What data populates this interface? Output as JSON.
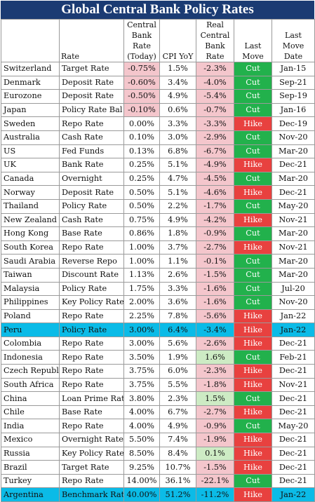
{
  "title": "Global Central Bank Policy Rates",
  "headers": {
    "country": "",
    "rate": "Rate",
    "central_rate": "Central Bank Rate (Today)",
    "cpi": "CPI YoY",
    "real_rate": "Real Central Bank Rate",
    "last_move": "Last Move",
    "last_move_date": "Last Move Date"
  },
  "colors": {
    "title_bg": "#1b3b73",
    "cut": "#22b14c",
    "hike": "#e8413f",
    "negative": "#f4c6cc",
    "positive": "#cdebc4",
    "highlight": "#0bbbe7"
  },
  "chart_data": {
    "type": "table",
    "title": "Global Central Bank Policy Rates",
    "columns": [
      "",
      "Rate",
      "Central Bank Rate (Today)",
      "CPI YoY",
      "Real Central Bank Rate",
      "Last Move",
      "Last Move Date"
    ],
    "rows": [
      {
        "country": "Switzerland",
        "rate": "Target Rate",
        "cb_rate": "-0.75%",
        "cpi": "1.5%",
        "real": "-2.3%",
        "move": "Cut",
        "date": "Jan-15"
      },
      {
        "country": "Denmark",
        "rate": "Deposit Rate",
        "cb_rate": "-0.60%",
        "cpi": "3.4%",
        "real": "-4.0%",
        "move": "Cut",
        "date": "Sep-21"
      },
      {
        "country": "Eurozone",
        "rate": "Deposit Rate",
        "cb_rate": "-0.50%",
        "cpi": "4.9%",
        "real": "-5.4%",
        "move": "Cut",
        "date": "Sep-19"
      },
      {
        "country": "Japan",
        "rate": "Policy Rate Bal",
        "cb_rate": "-0.10%",
        "cpi": "0.6%",
        "real": "-0.7%",
        "move": "Cut",
        "date": "Jan-16"
      },
      {
        "country": "Sweden",
        "rate": "Repo Rate",
        "cb_rate": "0.00%",
        "cpi": "3.3%",
        "real": "-3.3%",
        "move": "Hike",
        "date": "Dec-19"
      },
      {
        "country": "Australia",
        "rate": "Cash Rate",
        "cb_rate": "0.10%",
        "cpi": "3.0%",
        "real": "-2.9%",
        "move": "Cut",
        "date": "Nov-20"
      },
      {
        "country": "US",
        "rate": "Fed Funds",
        "cb_rate": "0.13%",
        "cpi": "6.8%",
        "real": "-6.7%",
        "move": "Cut",
        "date": "Mar-20"
      },
      {
        "country": "UK",
        "rate": "Bank Rate",
        "cb_rate": "0.25%",
        "cpi": "5.1%",
        "real": "-4.9%",
        "move": "Hike",
        "date": "Dec-21"
      },
      {
        "country": "Canada",
        "rate": "Overnight",
        "cb_rate": "0.25%",
        "cpi": "4.7%",
        "real": "-4.5%",
        "move": "Cut",
        "date": "Mar-20"
      },
      {
        "country": "Norway",
        "rate": "Deposit Rate",
        "cb_rate": "0.50%",
        "cpi": "5.1%",
        "real": "-4.6%",
        "move": "Hike",
        "date": "Dec-21"
      },
      {
        "country": "Thailand",
        "rate": "Policy Rate",
        "cb_rate": "0.50%",
        "cpi": "2.2%",
        "real": "-1.7%",
        "move": "Cut",
        "date": "May-20"
      },
      {
        "country": "New Zealand",
        "rate": "Cash Rate",
        "cb_rate": "0.75%",
        "cpi": "4.9%",
        "real": "-4.2%",
        "move": "Hike",
        "date": "Nov-21"
      },
      {
        "country": "Hong Kong",
        "rate": "Base Rate",
        "cb_rate": "0.86%",
        "cpi": "1.8%",
        "real": "-0.9%",
        "move": "Cut",
        "date": "Mar-20"
      },
      {
        "country": "South Korea",
        "rate": "Repo Rate",
        "cb_rate": "1.00%",
        "cpi": "3.7%",
        "real": "-2.7%",
        "move": "Hike",
        "date": "Nov-21"
      },
      {
        "country": "Saudi Arabia",
        "rate": "Reverse Repo",
        "cb_rate": "1.00%",
        "cpi": "1.1%",
        "real": "-0.1%",
        "move": "Cut",
        "date": "Mar-20"
      },
      {
        "country": "Taiwan",
        "rate": "Discount Rate",
        "cb_rate": "1.13%",
        "cpi": "2.6%",
        "real": "-1.5%",
        "move": "Cut",
        "date": "Mar-20"
      },
      {
        "country": "Malaysia",
        "rate": "Policy Rate",
        "cb_rate": "1.75%",
        "cpi": "3.3%",
        "real": "-1.6%",
        "move": "Cut",
        "date": "Jul-20"
      },
      {
        "country": "Philippines",
        "rate": "Key Policy Rate",
        "cb_rate": "2.00%",
        "cpi": "3.6%",
        "real": "-1.6%",
        "move": "Cut",
        "date": "Nov-20"
      },
      {
        "country": "Poland",
        "rate": "Repo Rate",
        "cb_rate": "2.25%",
        "cpi": "7.8%",
        "real": "-5.6%",
        "move": "Hike",
        "date": "Jan-22"
      },
      {
        "country": "Peru",
        "rate": "Policy Rate",
        "cb_rate": "3.00%",
        "cpi": "6.4%",
        "real": "-3.4%",
        "move": "Hike",
        "date": "Jan-22",
        "highlight": true
      },
      {
        "country": "Colombia",
        "rate": "Repo Rate",
        "cb_rate": "3.00%",
        "cpi": "5.6%",
        "real": "-2.6%",
        "move": "Hike",
        "date": "Dec-21"
      },
      {
        "country": "Indonesia",
        "rate": "Repo Rate",
        "cb_rate": "3.50%",
        "cpi": "1.9%",
        "real": "1.6%",
        "move": "Cut",
        "date": "Feb-21"
      },
      {
        "country": "Czech Republic",
        "rate": "Repo Rate",
        "cb_rate": "3.75%",
        "cpi": "6.0%",
        "real": "-2.3%",
        "move": "Hike",
        "date": "Dec-21"
      },
      {
        "country": "South Africa",
        "rate": "Repo Rate",
        "cb_rate": "3.75%",
        "cpi": "5.5%",
        "real": "-1.8%",
        "move": "Hike",
        "date": "Nov-21"
      },
      {
        "country": "China",
        "rate": "Loan Prime Rate",
        "cb_rate": "3.80%",
        "cpi": "2.3%",
        "real": "1.5%",
        "move": "Cut",
        "date": "Dec-21"
      },
      {
        "country": "Chile",
        "rate": "Base Rate",
        "cb_rate": "4.00%",
        "cpi": "6.7%",
        "real": "-2.7%",
        "move": "Hike",
        "date": "Dec-21"
      },
      {
        "country": "India",
        "rate": "Repo Rate",
        "cb_rate": "4.00%",
        "cpi": "4.9%",
        "real": "-0.9%",
        "move": "Cut",
        "date": "May-20"
      },
      {
        "country": "Mexico",
        "rate": "Overnight Rate",
        "cb_rate": "5.50%",
        "cpi": "7.4%",
        "real": "-1.9%",
        "move": "Hike",
        "date": "Dec-21"
      },
      {
        "country": "Russia",
        "rate": "Key Policy Rate",
        "cb_rate": "8.50%",
        "cpi": "8.4%",
        "real": "0.1%",
        "move": "Hike",
        "date": "Dec-21"
      },
      {
        "country": "Brazil",
        "rate": "Target Rate",
        "cb_rate": "9.25%",
        "cpi": "10.7%",
        "real": "-1.5%",
        "move": "Hike",
        "date": "Dec-21"
      },
      {
        "country": "Turkey",
        "rate": "Repo Rate",
        "cb_rate": "14.00%",
        "cpi": "36.1%",
        "real": "-22.1%",
        "move": "Cut",
        "date": "Dec-21"
      },
      {
        "country": "Argentina",
        "rate": "Benchmark Rate",
        "cb_rate": "40.00%",
        "cpi": "51.2%",
        "real": "-11.2%",
        "move": "Hike",
        "date": "Jan-22",
        "highlight": true
      }
    ]
  }
}
